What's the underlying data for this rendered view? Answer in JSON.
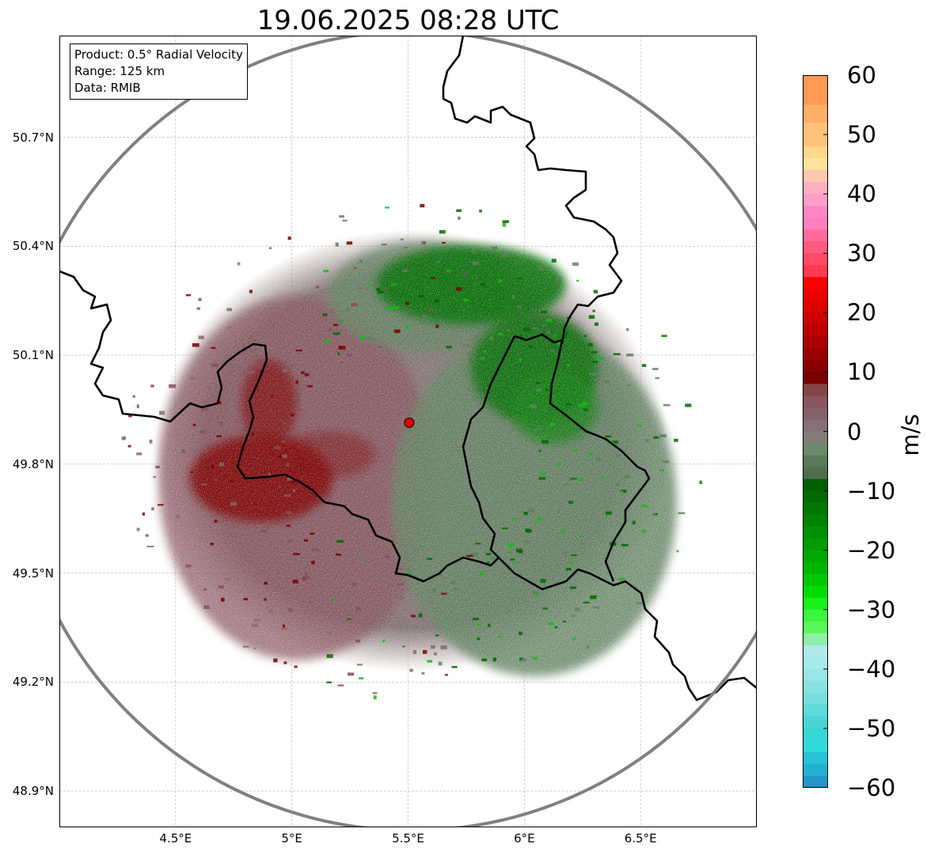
{
  "title": "19.06.2025 08:28 UTC",
  "info_box": {
    "product": "Product: 0.5° Radial Velocity",
    "range": "Range: 125 km",
    "source": "Data: RMIB"
  },
  "lat_axis": {
    "labels": [
      "50.7°N",
      "50.4°N",
      "50.1°N",
      "49.8°N",
      "49.5°N",
      "49.2°N",
      "48.9°N"
    ],
    "values": [
      50.7,
      50.4,
      50.1,
      49.8,
      49.5,
      49.2,
      48.9
    ]
  },
  "lon_axis": {
    "labels": [
      "4.5°E",
      "5°E",
      "5.5°E",
      "6°E",
      "6.5°E"
    ],
    "values": [
      4.5,
      5.0,
      5.5,
      6.0,
      6.5
    ]
  },
  "extent": {
    "lon_min": 4.0,
    "lon_max": 7.0,
    "lat_min": 48.8,
    "lat_max": 50.98
  },
  "radar_site": {
    "lon": 5.505,
    "lat": 49.914
  },
  "colorbar": {
    "unit": "m/s",
    "min": -60,
    "max": 60,
    "tick_labels": [
      "60",
      "50",
      "40",
      "30",
      "20",
      "10",
      "0",
      "−10",
      "−20",
      "−30",
      "−40",
      "−50",
      "−60"
    ],
    "tick_values": [
      60,
      50,
      40,
      30,
      20,
      10,
      0,
      -10,
      -20,
      -30,
      -40,
      -50,
      -60
    ]
  },
  "colors": {
    "range_ring": "#808080",
    "border": "#000000",
    "radar_marker": "#e00000",
    "outbound_strong": "#7b0000",
    "outbound_weak": "#84505a",
    "neutral": "#857575",
    "inbound_weak": "#5f7f5f",
    "inbound_strong": "#006a00"
  }
}
